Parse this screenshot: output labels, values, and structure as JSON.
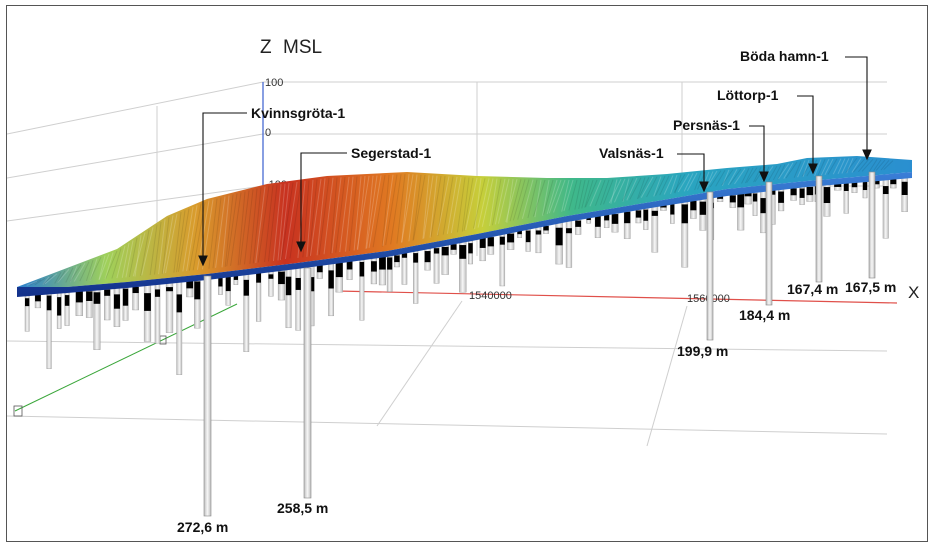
{
  "axes": {
    "z_letter": "Z",
    "z_title": "MSL",
    "x_letter": "X",
    "z_ticks": [
      "100",
      "0",
      "-100"
    ],
    "x_ticks": [
      "1540000",
      "1560000"
    ]
  },
  "wells": [
    {
      "name": "Kvinnsgröta-1",
      "depth": "272,6 m"
    },
    {
      "name": "Segerstad-1",
      "depth": "258,5 m"
    },
    {
      "name": "Valsnäs-1",
      "depth": "199,9 m"
    },
    {
      "name": "Persnäs-1",
      "depth": "184,4 m"
    },
    {
      "name": "Löttorp-1",
      "depth": "167,4 m"
    },
    {
      "name": "Böda hamn-1",
      "depth": "167,5 m"
    }
  ],
  "colors": {
    "surface_low": "#1f4fb5",
    "surface_mid": "#2ab8a0",
    "surface_high": "#d9261c",
    "x_axis": "#e0504a",
    "y_axis": "#3aa63a",
    "z_axis": "#3a5fcf",
    "borehole": "#e8e8e8",
    "core": "#000000"
  }
}
